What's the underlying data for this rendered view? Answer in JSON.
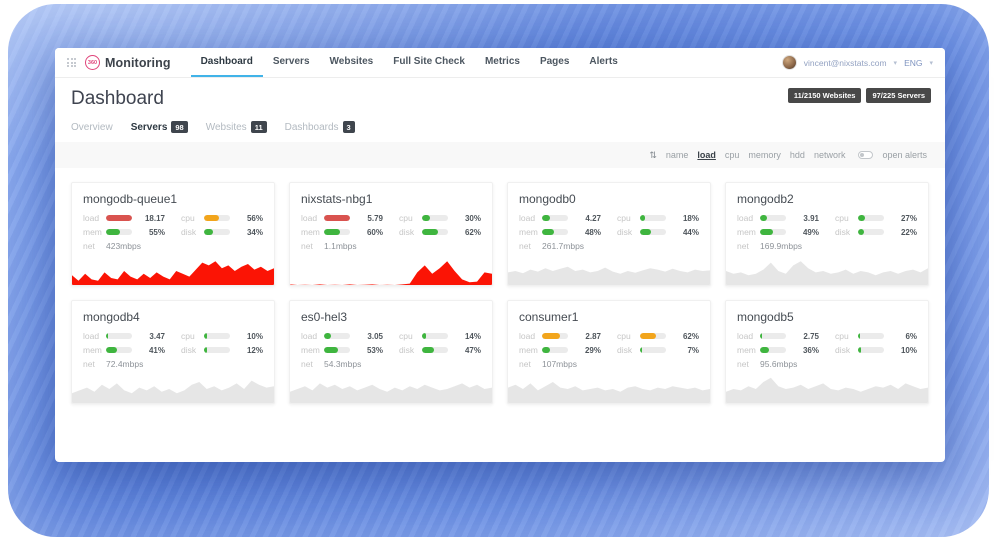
{
  "brand": {
    "logo_text": "360",
    "name": "Monitoring"
  },
  "nav": {
    "items": [
      {
        "label": "Dashboard",
        "active": true
      },
      {
        "label": "Servers",
        "active": false
      },
      {
        "label": "Websites",
        "active": false
      },
      {
        "label": "Full Site Check",
        "active": false
      },
      {
        "label": "Metrics",
        "active": false
      },
      {
        "label": "Pages",
        "active": false
      },
      {
        "label": "Alerts",
        "active": false
      }
    ]
  },
  "user": {
    "email": "vincent@nixstats.com",
    "lang": "ENG",
    "caret": "▾"
  },
  "page": {
    "title": "Dashboard"
  },
  "usage_badges": [
    {
      "label": "11/2150 Websites"
    },
    {
      "label": "97/225 Servers"
    }
  ],
  "subnav": {
    "items": [
      {
        "label": "Overview",
        "count": null,
        "active": false
      },
      {
        "label": "Servers",
        "count": "98",
        "active": true
      },
      {
        "label": "Websites",
        "count": "11",
        "active": false
      },
      {
        "label": "Dashboards",
        "count": "3",
        "active": false
      }
    ]
  },
  "sortbar": {
    "sort_icon_glyph": "⇅",
    "items": [
      {
        "label": "name",
        "active": false
      },
      {
        "label": "load",
        "active": true
      },
      {
        "label": "cpu",
        "active": false
      },
      {
        "label": "memory",
        "active": false
      },
      {
        "label": "hdd",
        "active": false
      },
      {
        "label": "network",
        "active": false
      }
    ],
    "open_alerts_label": "open alerts"
  },
  "metric_labels": {
    "load": "load",
    "cpu": "cpu",
    "mem": "mem",
    "disk": "disk",
    "net": "net"
  },
  "colors": {
    "green": "#3fb53f",
    "orange": "#f2a51c",
    "red": "#d9534f",
    "spark_red": "#fb1405",
    "spark_gray": "#e6e6e6",
    "accent_blue": "#41b3e8",
    "badge_bg": "#484848"
  },
  "servers": [
    {
      "name": "mongodb-queue1",
      "metrics": {
        "load": {
          "value": "18.17",
          "pct": 100,
          "color": "red"
        },
        "cpu": {
          "value": "56%",
          "pct": 56,
          "color": "orange"
        },
        "mem": {
          "value": "55%",
          "pct": 55,
          "color": "green"
        },
        "disk": {
          "value": "34%",
          "pct": 34,
          "color": "green"
        },
        "net": {
          "value": "423mbps"
        }
      },
      "spark": {
        "color": "red",
        "points": [
          0.35,
          0.15,
          0.4,
          0.2,
          0.15,
          0.45,
          0.25,
          0.2,
          0.5,
          0.3,
          0.2,
          0.4,
          0.25,
          0.45,
          0.3,
          0.2,
          0.5,
          0.4,
          0.3,
          0.55,
          0.8,
          0.7,
          0.85,
          0.6,
          0.7,
          0.5,
          0.65,
          0.75,
          0.55,
          0.65,
          0.5,
          0.6
        ]
      }
    },
    {
      "name": "nixstats-nbg1",
      "metrics": {
        "load": {
          "value": "5.79",
          "pct": 100,
          "color": "red"
        },
        "cpu": {
          "value": "30%",
          "pct": 30,
          "color": "green"
        },
        "mem": {
          "value": "60%",
          "pct": 60,
          "color": "green"
        },
        "disk": {
          "value": "62%",
          "pct": 62,
          "color": "green"
        },
        "net": {
          "value": "1.1mbps"
        }
      },
      "spark": {
        "color": "red",
        "points": [
          0.02,
          0,
          0.01,
          0,
          0.02,
          0,
          0.01,
          0,
          0.02,
          0,
          0.01,
          0.02,
          0,
          0.01,
          0,
          0.02,
          0.05,
          0.45,
          0.7,
          0.4,
          0.6,
          0.85,
          0.5,
          0.2,
          0.1,
          0.12,
          0.45,
          0.4
        ]
      }
    },
    {
      "name": "mongodb0",
      "metrics": {
        "load": {
          "value": "4.27",
          "pct": 30,
          "color": "green"
        },
        "cpu": {
          "value": "18%",
          "pct": 18,
          "color": "green"
        },
        "mem": {
          "value": "48%",
          "pct": 48,
          "color": "green"
        },
        "disk": {
          "value": "44%",
          "pct": 44,
          "color": "green"
        },
        "net": {
          "value": "261.7mbps"
        }
      },
      "spark": {
        "color": "gray",
        "points": [
          0.45,
          0.5,
          0.42,
          0.55,
          0.48,
          0.6,
          0.5,
          0.58,
          0.65,
          0.5,
          0.55,
          0.45,
          0.5,
          0.62,
          0.48,
          0.4,
          0.5,
          0.44,
          0.52,
          0.6,
          0.55,
          0.48,
          0.58,
          0.5,
          0.45,
          0.55,
          0.5,
          0.52
        ]
      }
    },
    {
      "name": "mongodb2",
      "metrics": {
        "load": {
          "value": "3.91",
          "pct": 28,
          "color": "green"
        },
        "cpu": {
          "value": "27%",
          "pct": 27,
          "color": "green"
        },
        "mem": {
          "value": "49%",
          "pct": 49,
          "color": "green"
        },
        "disk": {
          "value": "22%",
          "pct": 22,
          "color": "green"
        },
        "net": {
          "value": "169.9mbps"
        }
      },
      "spark": {
        "color": "gray",
        "points": [
          0.5,
          0.4,
          0.45,
          0.35,
          0.4,
          0.55,
          0.8,
          0.5,
          0.4,
          0.7,
          0.85,
          0.6,
          0.45,
          0.5,
          0.4,
          0.45,
          0.55,
          0.4,
          0.5,
          0.45,
          0.35,
          0.45,
          0.5,
          0.4,
          0.5,
          0.55,
          0.45,
          0.6
        ]
      }
    },
    {
      "name": "mongodb4",
      "metrics": {
        "load": {
          "value": "3.47",
          "pct": 9,
          "color": "green"
        },
        "cpu": {
          "value": "10%",
          "pct": 10,
          "color": "green"
        },
        "mem": {
          "value": "41%",
          "pct": 41,
          "color": "green"
        },
        "disk": {
          "value": "12%",
          "pct": 12,
          "color": "green"
        },
        "net": {
          "value": "72.4mbps"
        }
      },
      "spark": {
        "color": "gray",
        "points": [
          0.35,
          0.45,
          0.55,
          0.4,
          0.65,
          0.5,
          0.7,
          0.45,
          0.35,
          0.55,
          0.45,
          0.6,
          0.4,
          0.5,
          0.35,
          0.45,
          0.65,
          0.75,
          0.5,
          0.6,
          0.45,
          0.55,
          0.7,
          0.5,
          0.8,
          0.65,
          0.55,
          0.6
        ]
      }
    },
    {
      "name": "es0-hel3",
      "metrics": {
        "load": {
          "value": "3.05",
          "pct": 25,
          "color": "green"
        },
        "cpu": {
          "value": "14%",
          "pct": 14,
          "color": "green"
        },
        "mem": {
          "value": "53%",
          "pct": 53,
          "color": "green"
        },
        "disk": {
          "value": "47%",
          "pct": 47,
          "color": "green"
        },
        "net": {
          "value": "54.3mbps"
        }
      },
      "spark": {
        "color": "gray",
        "points": [
          0.4,
          0.5,
          0.6,
          0.45,
          0.7,
          0.55,
          0.65,
          0.5,
          0.6,
          0.45,
          0.55,
          0.65,
          0.5,
          0.4,
          0.55,
          0.45,
          0.6,
          0.5,
          0.65,
          0.55,
          0.45,
          0.5,
          0.6,
          0.7,
          0.55,
          0.65,
          0.5,
          0.55
        ]
      }
    },
    {
      "name": "consumer1",
      "metrics": {
        "load": {
          "value": "2.87",
          "pct": 68,
          "color": "orange"
        },
        "cpu": {
          "value": "62%",
          "pct": 62,
          "color": "orange"
        },
        "mem": {
          "value": "29%",
          "pct": 29,
          "color": "green"
        },
        "disk": {
          "value": "7%",
          "pct": 7,
          "color": "green"
        },
        "net": {
          "value": "107mbps"
        }
      },
      "spark": {
        "color": "gray",
        "points": [
          0.55,
          0.65,
          0.5,
          0.7,
          0.45,
          0.6,
          0.75,
          0.55,
          0.5,
          0.6,
          0.45,
          0.5,
          0.55,
          0.45,
          0.5,
          0.4,
          0.55,
          0.6,
          0.5,
          0.45,
          0.55,
          0.5,
          0.6,
          0.55,
          0.5,
          0.55,
          0.45,
          0.5
        ]
      }
    },
    {
      "name": "mongodb5",
      "metrics": {
        "load": {
          "value": "2.75",
          "pct": 8,
          "color": "green"
        },
        "cpu": {
          "value": "6%",
          "pct": 6,
          "color": "green"
        },
        "mem": {
          "value": "36%",
          "pct": 36,
          "color": "green"
        },
        "disk": {
          "value": "10%",
          "pct": 10,
          "color": "green"
        },
        "net": {
          "value": "95.6mbps"
        }
      },
      "spark": {
        "color": "gray",
        "points": [
          0.4,
          0.5,
          0.45,
          0.6,
          0.5,
          0.75,
          0.9,
          0.6,
          0.5,
          0.55,
          0.65,
          0.5,
          0.6,
          0.7,
          0.5,
          0.45,
          0.55,
          0.5,
          0.4,
          0.5,
          0.6,
          0.55,
          0.65,
          0.5,
          0.7,
          0.6,
          0.5,
          0.55
        ]
      }
    }
  ]
}
